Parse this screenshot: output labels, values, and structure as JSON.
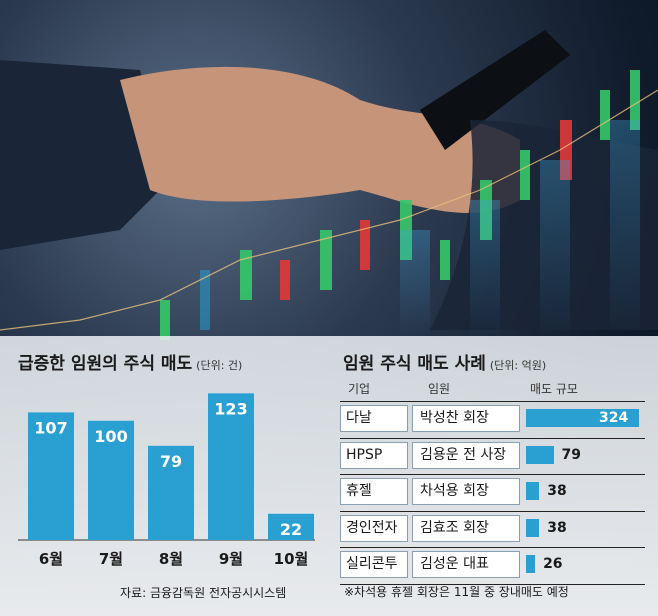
{
  "left_chart": {
    "title": "급증한 임원의 주식 매도",
    "unit": "(단위: 건)",
    "source": "자료: 금융감독원 전자공시시스템"
  },
  "right_table": {
    "title": "임원 주식 매도 사례",
    "unit": "(단위: 억원)",
    "headers": [
      "기업",
      "임원",
      "매도 규모"
    ],
    "rows": [
      {
        "company": "다날",
        "exec": "박성찬 회장",
        "value": 324,
        "label": "324"
      },
      {
        "company": "HPSP",
        "exec": "김용운 전 사장",
        "value": 79,
        "label": "79"
      },
      {
        "company": "휴젤",
        "exec": "차석용 회장",
        "value": 38,
        "label": "38"
      },
      {
        "company": "경인전자",
        "exec": "김효조 회장",
        "value": 38,
        "label": "38"
      },
      {
        "company": "실리콘투",
        "exec": "김성운 대표",
        "value": 26,
        "label": "26"
      }
    ],
    "note": "※차석용 휴젤 회장은 11월 중 장내매도 예정"
  },
  "chart_data": [
    {
      "type": "bar",
      "title": "급증한 임원의 주식 매도",
      "unit": "(단위: 건)",
      "categories": [
        "6월",
        "7월",
        "8월",
        "9월",
        "10월"
      ],
      "values": [
        107,
        100,
        79,
        123,
        22
      ],
      "ylim": [
        0,
        130
      ],
      "grid": false,
      "color": "#2a9fd2"
    },
    {
      "type": "bar",
      "orientation": "horizontal",
      "title": "임원 주식 매도 사례",
      "unit": "(단위: 억원)",
      "categories": [
        "다날",
        "HPSP",
        "휴젤",
        "경인전자",
        "실리콘투"
      ],
      "values": [
        324,
        79,
        38,
        38,
        26
      ],
      "color": "#2a9fd2"
    }
  ],
  "colors": {
    "accent": "#2a9fd2",
    "background_dark": "#0f1a2a",
    "panel": "#eef1f4"
  }
}
